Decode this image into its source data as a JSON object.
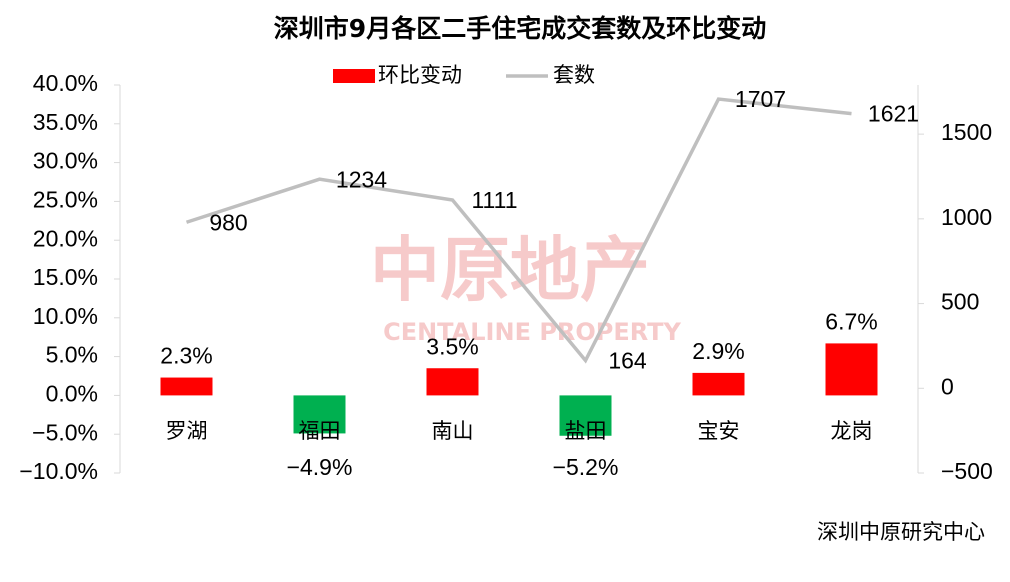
{
  "chart_data": {
    "type": "bar_line",
    "title": "深圳市9月各区二手住宅成交套数及环比变动",
    "categories": [
      "罗湖",
      "福田",
      "南山",
      "盐田",
      "宝安",
      "龙岗"
    ],
    "series": [
      {
        "name": "环比变动",
        "type": "bar",
        "color": "#ff0000",
        "negative_color": "#00b050",
        "values": [
          2.3,
          -4.9,
          3.5,
          -5.2,
          2.9,
          6.7
        ],
        "value_labels": [
          "2.3%",
          "−4.9%",
          "3.5%",
          "−5.2%",
          "2.9%",
          "6.7%"
        ]
      },
      {
        "name": "套数",
        "type": "line",
        "axis": "y2",
        "color": "#bfbfbf",
        "values": [
          980,
          1234,
          1111,
          164,
          1707,
          1621
        ]
      }
    ],
    "ylim": [
      -10,
      40
    ],
    "yticks": [
      {
        "value": -10,
        "label": "−10.0%"
      },
      {
        "value": -5,
        "label": "−5.0%"
      },
      {
        "value": 0,
        "label": "0.0%"
      },
      {
        "value": 5,
        "label": "5.0%"
      },
      {
        "value": 10,
        "label": "10.0%"
      },
      {
        "value": 15,
        "label": "15.0%"
      },
      {
        "value": 20,
        "label": "20.0%"
      },
      {
        "value": 25,
        "label": "25.0%"
      },
      {
        "value": 30,
        "label": "30.0%"
      },
      {
        "value": 35,
        "label": "35.0%"
      },
      {
        "value": 40,
        "label": "40.0%"
      }
    ],
    "y2lim": [
      -500,
      1790
    ],
    "y2ticks": [
      {
        "value": -500,
        "label": "−500"
      },
      0,
      500,
      1000,
      1500
    ],
    "watermark": "中原地产",
    "watermark_sub": "CENTALINE PROPERTY",
    "source": "深圳中原研究中心"
  }
}
